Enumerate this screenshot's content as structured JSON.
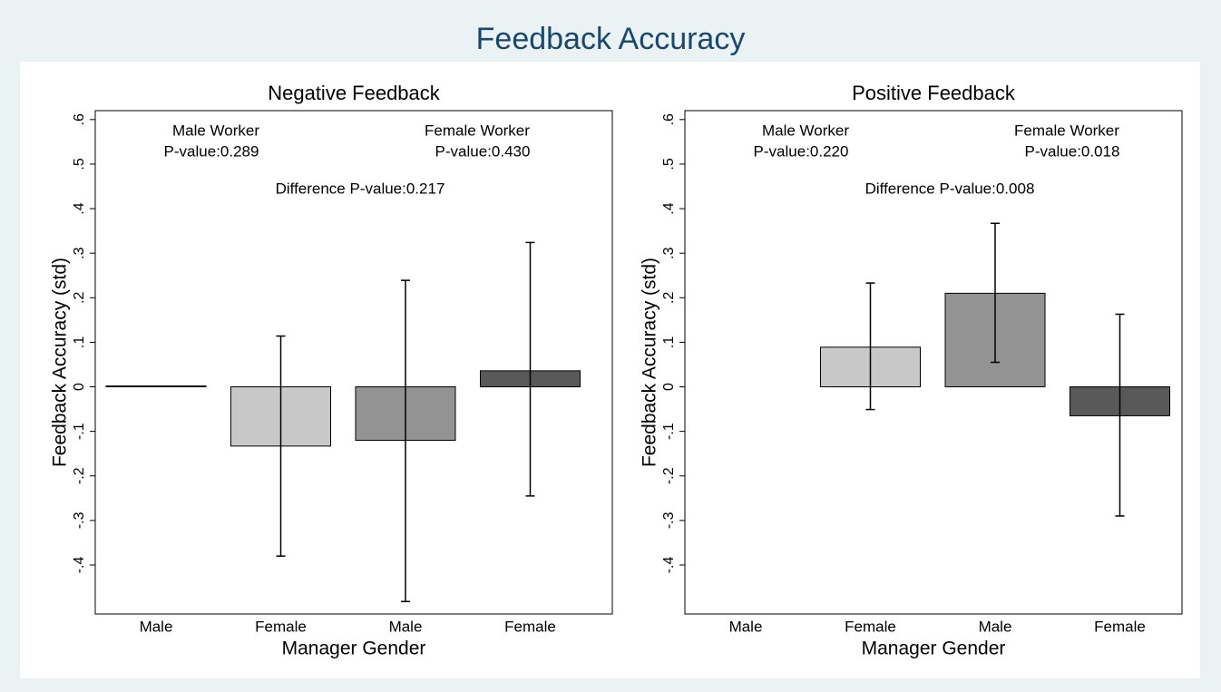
{
  "title": "Feedback Accuracy",
  "chart_data": [
    {
      "type": "bar",
      "title": "Negative Feedback",
      "x_label": "Manager Gender",
      "y_label": "Feedback Accuracy (std)",
      "categories": [
        "Male",
        "Female",
        "Male",
        "Female"
      ],
      "values": [
        0.002,
        -0.133,
        -0.12,
        0.036
      ],
      "ci_low": [
        null,
        -0.38,
        -0.482,
        -0.245
      ],
      "ci_high": [
        null,
        0.114,
        0.239,
        0.324
      ],
      "colors": [
        "#000000",
        "#c8c8c8",
        "#939393",
        "#595959"
      ],
      "ylim": [
        -0.51,
        0.62
      ],
      "yticks": [
        {
          "value": -0.4,
          "label": "-.4"
        },
        {
          "value": -0.3,
          "label": "-.3"
        },
        {
          "value": -0.2,
          "label": "-.2"
        },
        {
          "value": -0.1,
          "label": "-.1"
        },
        0,
        {
          "value": 0.1,
          "label": ".1"
        },
        {
          "value": 0.2,
          "label": ".2"
        },
        {
          "value": 0.3,
          "label": ".3"
        },
        {
          "value": 0.4,
          "label": ".4"
        },
        {
          "value": 0.5,
          "label": ".5"
        },
        {
          "value": 0.6,
          "label": ".6"
        }
      ],
      "annotations": [
        "Male Worker",
        "P-value:0.289",
        "Female Worker",
        "P-value:0.430",
        "Difference P-value:0.217"
      ]
    },
    {
      "type": "bar",
      "title": "Positive Feedback",
      "x_label": "Manager Gender",
      "y_label": "Feedback Accuracy (std)",
      "categories": [
        "Male",
        "Female",
        "Male",
        "Female"
      ],
      "values": [
        0,
        0.089,
        0.21,
        -0.065
      ],
      "ci_low": [
        null,
        -0.051,
        0.055,
        -0.29
      ],
      "ci_high": [
        null,
        0.233,
        0.367,
        0.163
      ],
      "colors": [
        "#000000",
        "#c8c8c8",
        "#939393",
        "#595959"
      ],
      "ylim": [
        -0.51,
        0.62
      ],
      "yticks": [
        {
          "value": -0.4,
          "label": "-.4"
        },
        {
          "value": -0.3,
          "label": "-.3"
        },
        {
          "value": -0.2,
          "label": "-.2"
        },
        {
          "value": -0.1,
          "label": "-.1"
        },
        0,
        {
          "value": 0.1,
          "label": ".1"
        },
        {
          "value": 0.2,
          "label": ".2"
        },
        {
          "value": 0.3,
          "label": ".3"
        },
        {
          "value": 0.4,
          "label": ".4"
        },
        {
          "value": 0.5,
          "label": ".5"
        },
        {
          "value": 0.6,
          "label": ".6"
        }
      ],
      "annotations": [
        "Male Worker",
        "P-value:0.220",
        "Female Worker",
        "P-value:0.018",
        "Difference P-value:0.008"
      ]
    }
  ]
}
